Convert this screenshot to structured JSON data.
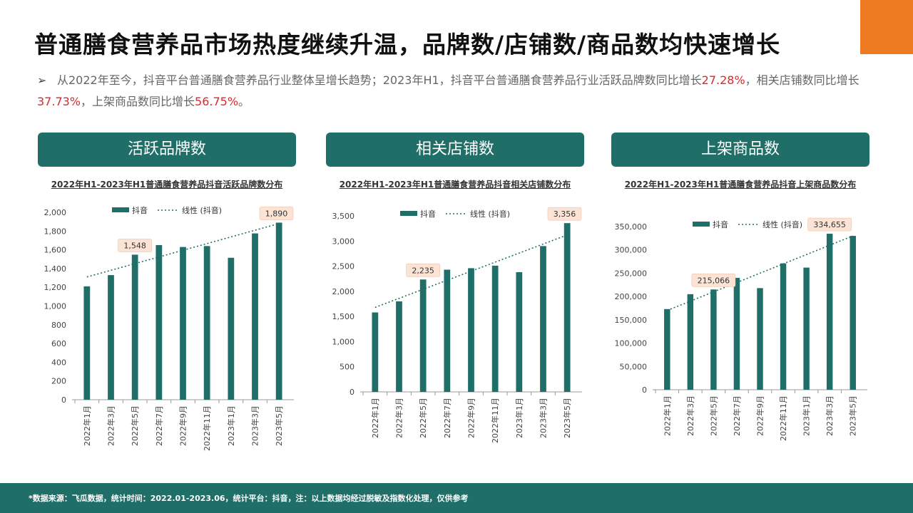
{
  "title": "普通膳食营养品市场热度继续升温，品牌数/店铺数/商品数均快速增长",
  "summary": {
    "arrow": "➢",
    "text1": "从2022年至今，抖音平台普通膳食营养品行业整体呈增长趋势；2023年H1，抖音平台普通膳食营养品行业活跃品牌数同比增长",
    "h1": "27.28%",
    "text2": "，相关店铺数同比增长",
    "h2": "37.73%",
    "text3": "，上架商品数同比增长",
    "h3": "56.75%",
    "text4": "。"
  },
  "panels": [
    {
      "header": "活跃品牌数",
      "subtitle": "2022年H1-2023年H1普通膳食营养品抖音活跃品牌数分布"
    },
    {
      "header": "相关店铺数",
      "subtitle": "2022年H1-2023年H1普通膳食营养品抖音相关店铺数分布"
    },
    {
      "header": "上架商品数",
      "subtitle": "2022年H1-2023年H1普通膳食营养品抖音上架商品数分布"
    }
  ],
  "footer": "*数据来源：飞瓜数据，统计时间：2022.01-2023.06，统计平台：抖音，注：以上数据均经过脱敏及指数化处理，仅供参考",
  "colors": {
    "bar": "#1f6e68",
    "callout_bg": "#fbe3d6",
    "accent": "#ee7a22",
    "highlight": "#e0262a"
  },
  "chart_data": [
    {
      "type": "bar",
      "title": "2022年H1-2023年H1普通膳食营养品抖音活跃品牌数分布",
      "categories": [
        "2022年1月",
        "2022年3月",
        "2022年5月",
        "2022年7月",
        "2022年9月",
        "2022年11月",
        "2023年1月",
        "2023年3月",
        "2023年5月"
      ],
      "series": [
        {
          "name": "抖音",
          "values": [
            1210,
            1330,
            1548,
            1650,
            1630,
            1640,
            1515,
            1775,
            1890
          ]
        }
      ],
      "trendline": {
        "name": "线性 (抖音)",
        "start": 1310,
        "end": 1880
      },
      "ylim": [
        0,
        2000
      ],
      "yticks": [
        "0",
        "200",
        "400",
        "600",
        "800",
        "1,000",
        "1,200",
        "1,400",
        "1,600",
        "1,800",
        "2,000"
      ],
      "callouts": [
        {
          "index": 2,
          "label": "1,548"
        },
        {
          "index": 8,
          "label": "1,890"
        }
      ],
      "legend": "top"
    },
    {
      "type": "bar",
      "title": "2022年H1-2023年H1普通膳食营养品抖音相关店铺数分布",
      "categories": [
        "2022年1月",
        "2022年3月",
        "2022年5月",
        "2022年7月",
        "2022年9月",
        "2022年11月",
        "2023年1月",
        "2023年3月",
        "2023年5月"
      ],
      "series": [
        {
          "name": "抖音",
          "values": [
            1580,
            1800,
            2235,
            2430,
            2460,
            2510,
            2380,
            2900,
            3356
          ]
        }
      ],
      "trendline": {
        "name": "线性 (抖音)",
        "start": 1680,
        "end": 3120
      },
      "ylim": [
        0,
        3500
      ],
      "yticks": [
        "0",
        "500",
        "1,000",
        "1,500",
        "2,000",
        "2,500",
        "3,000",
        "3,500"
      ],
      "callouts": [
        {
          "index": 2,
          "label": "2,235"
        },
        {
          "index": 8,
          "label": "3,356"
        }
      ],
      "legend": "top"
    },
    {
      "type": "bar",
      "title": "2022年H1-2023年H1普通膳食营养品抖音上架商品数分布",
      "categories": [
        "2022年1月",
        "2022年3月",
        "2022年5月",
        "2022年7月",
        "2022年9月",
        "2022年11月",
        "2023年1月",
        "2023年3月",
        "2023年5月"
      ],
      "series": [
        {
          "name": "抖音",
          "values": [
            173000,
            205000,
            215066,
            240000,
            218000,
            271000,
            262000,
            334655,
            330000
          ]
        }
      ],
      "trendline": {
        "name": "线性 (抖音)",
        "start": 170000,
        "end": 330000
      },
      "ylim": [
        0,
        350000
      ],
      "yticks": [
        "0",
        "50,000",
        "100,000",
        "150,000",
        "200,000",
        "250,000",
        "300,000",
        "350,000"
      ],
      "callouts": [
        {
          "index": 2,
          "label": "215,066"
        },
        {
          "index": 7,
          "label": "334,655"
        }
      ],
      "legend": "top"
    }
  ]
}
